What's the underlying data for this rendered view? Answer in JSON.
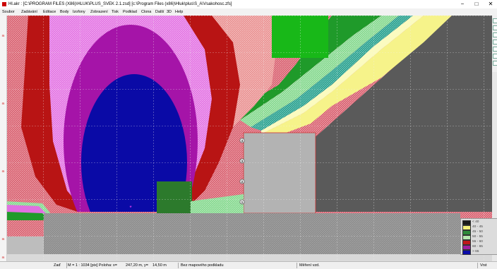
{
  "window": {
    "title": "Hl.akr : [C:\\PROGRAM FILES (X86)\\HLUK\\PLUS_SVEK 2.1.zsd] [c:\\Program Files (x86)\\Hluk\\plus\\S_A\\Vsakohosc.zfs]",
    "minimize": "−",
    "maximize": "□",
    "close": "✕"
  },
  "menu": [
    "Soubor",
    "Zadávání",
    "Editace",
    "Body",
    "Izofony",
    "Zobrazení",
    "Tisk",
    "Podklad",
    "Clona",
    "Další",
    "3D",
    "Help"
  ],
  "left_ruler": [
    "m",
    "m",
    "m",
    "m",
    "m"
  ],
  "map": {
    "receptor_points": [
      "4",
      "3",
      "2",
      "1"
    ],
    "source_marker": "*"
  },
  "legend": [
    {
      "label": "< 40",
      "color": "#1a1a1a"
    },
    {
      "label": "40 - 45",
      "color": "#f5f27a"
    },
    {
      "label": "45 - 50",
      "color": "#2e8a3a"
    },
    {
      "label": "50 - 55",
      "color": "#b8e8b0"
    },
    {
      "label": "55 - 60",
      "color": "#c0181a"
    },
    {
      "label": "60 - 65",
      "color": "#a020a0"
    },
    {
      "label": "> 65",
      "color": "#0a0aa8"
    }
  ],
  "status": {
    "mode": "Zaď",
    "scale": "M = 1 : 1034 [pix] Poloha: x=",
    "x": "247,20 m, y=",
    "y": "14,50 m",
    "background": "Bez mapového podkladu",
    "units": "Měření vzd.",
    "right": "Vrst"
  }
}
